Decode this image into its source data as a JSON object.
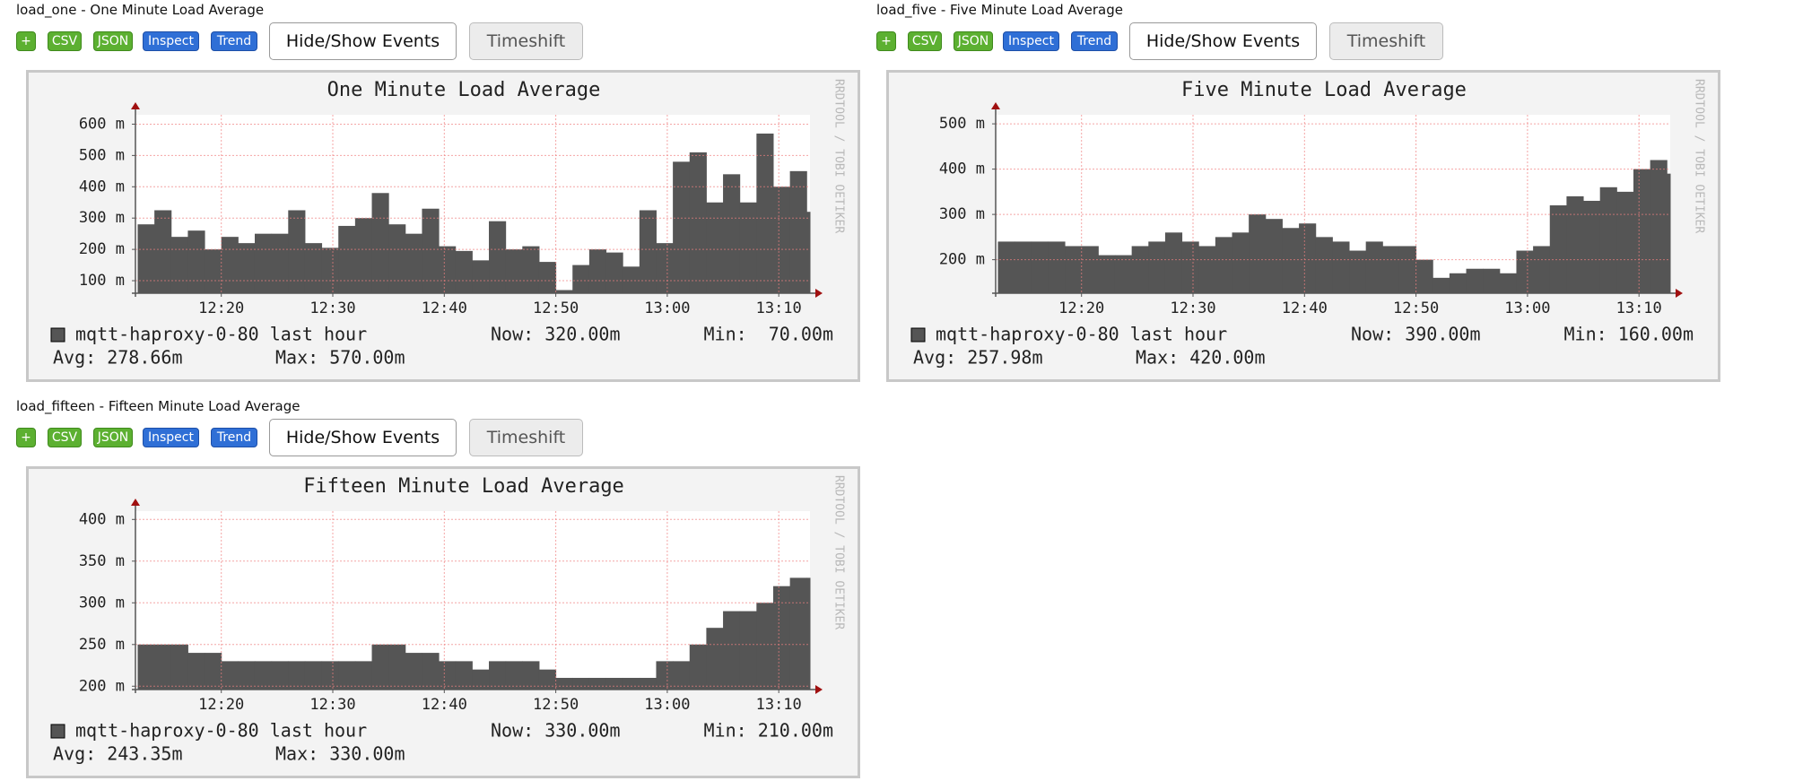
{
  "panels": [
    {
      "heading": "load_one - One Minute Load Average",
      "buttons": [
        "+",
        "CSV",
        "JSON",
        "Inspect",
        "Trend",
        "Hide/Show Events",
        "Timeshift"
      ]
    },
    {
      "heading": "load_five - Five Minute Load Average",
      "buttons": [
        "+",
        "CSV",
        "JSON",
        "Inspect",
        "Trend",
        "Hide/Show Events",
        "Timeshift"
      ]
    },
    {
      "heading": "load_fifteen - Fifteen Minute Load Average",
      "buttons": [
        "+",
        "CSV",
        "JSON",
        "Inspect",
        "Trend",
        "Hide/Show Events",
        "Timeshift"
      ]
    }
  ],
  "chart_data": [
    {
      "type": "area",
      "title": "One Minute Load Average",
      "watermark": "RRDTOOL / TOBI OETIKER",
      "x": [
        732.5,
        734,
        735.5,
        737,
        738.5,
        740,
        741.5,
        743,
        744.5,
        746,
        747.5,
        749,
        750.5,
        752,
        753.5,
        755,
        756.5,
        758,
        759.5,
        761,
        762.5,
        764,
        765.5,
        767,
        768.5,
        770,
        771.5,
        773,
        774.5,
        776,
        777.5,
        779,
        780.5,
        782,
        783.5,
        785,
        786.5,
        788,
        789.5,
        791,
        792.5
      ],
      "xlim": [
        732.3,
        792.8
      ],
      "xticks": [
        {
          "value": 740,
          "label": "12:20"
        },
        {
          "value": 750,
          "label": "12:30"
        },
        {
          "value": 760,
          "label": "12:40"
        },
        {
          "value": 770,
          "label": "12:50"
        },
        {
          "value": 780,
          "label": "13:00"
        },
        {
          "value": 790,
          "label": "13:10"
        }
      ],
      "series": [
        {
          "name": "mqtt-haproxy-0-80 last hour",
          "color": "#555555",
          "values": [
            280,
            325,
            240,
            260,
            200,
            240,
            220,
            250,
            250,
            325,
            220,
            205,
            275,
            300,
            380,
            280,
            250,
            330,
            210,
            195,
            165,
            290,
            200,
            210,
            160,
            70,
            150,
            200,
            190,
            145,
            325,
            220,
            480,
            510,
            350,
            440,
            350,
            570,
            400,
            450,
            320
          ]
        }
      ],
      "ylim": [
        60,
        630
      ],
      "yticks": [
        {
          "value": 100,
          "label": "100 m"
        },
        {
          "value": 200,
          "label": "200 m"
        },
        {
          "value": 300,
          "label": "300 m"
        },
        {
          "value": 400,
          "label": "400 m"
        },
        {
          "value": 500,
          "label": "500 m"
        },
        {
          "value": 600,
          "label": "600 m"
        }
      ],
      "grid": true,
      "stats": [
        "Now: 320.00m",
        "Min:  70.00m",
        "Avg: 278.66m",
        "Max: 570.00m"
      ]
    },
    {
      "type": "area",
      "title": "Five Minute Load Average",
      "watermark": "RRDTOOL / TOBI OETIKER",
      "x": [
        732.5,
        734,
        735.5,
        737,
        738.5,
        740,
        741.5,
        743,
        744.5,
        746,
        747.5,
        749,
        750.5,
        752,
        753.5,
        755,
        756.5,
        758,
        759.5,
        761,
        762.5,
        764,
        765.5,
        767,
        768.5,
        770,
        771.5,
        773,
        774.5,
        776,
        777.5,
        779,
        780.5,
        782,
        783.5,
        785,
        786.5,
        788,
        789.5,
        791,
        792.5
      ],
      "xlim": [
        732.3,
        792.8
      ],
      "xticks": [
        {
          "value": 740,
          "label": "12:20"
        },
        {
          "value": 750,
          "label": "12:30"
        },
        {
          "value": 760,
          "label": "12:40"
        },
        {
          "value": 770,
          "label": "12:50"
        },
        {
          "value": 780,
          "label": "13:00"
        },
        {
          "value": 790,
          "label": "13:10"
        }
      ],
      "series": [
        {
          "name": "mqtt-haproxy-0-80 last hour",
          "color": "#555555",
          "values": [
            240,
            240,
            240,
            240,
            230,
            230,
            210,
            210,
            230,
            240,
            260,
            240,
            230,
            250,
            260,
            300,
            290,
            270,
            280,
            250,
            240,
            220,
            240,
            230,
            230,
            200,
            160,
            170,
            180,
            180,
            170,
            220,
            230,
            320,
            340,
            330,
            360,
            350,
            400,
            420,
            390
          ]
        }
      ],
      "ylim": [
        126,
        520
      ],
      "yticks": [
        {
          "value": 200,
          "label": "200 m"
        },
        {
          "value": 300,
          "label": "300 m"
        },
        {
          "value": 400,
          "label": "400 m"
        },
        {
          "value": 500,
          "label": "500 m"
        }
      ],
      "grid": true,
      "stats": [
        "Now: 390.00m",
        "Min: 160.00m",
        "Avg: 257.98m",
        "Max: 420.00m"
      ]
    },
    {
      "type": "area",
      "title": "Fifteen Minute Load Average",
      "watermark": "RRDTOOL / TOBI OETIKER",
      "x": [
        732.5,
        734,
        735.5,
        737,
        738.5,
        740,
        741.5,
        743,
        744.5,
        746,
        747.5,
        749,
        750.5,
        752,
        753.5,
        755,
        756.5,
        758,
        759.5,
        761,
        762.5,
        764,
        765.5,
        767,
        768.5,
        770,
        771.5,
        773,
        774.5,
        776,
        777.5,
        779,
        780.5,
        782,
        783.5,
        785,
        786.5,
        788,
        789.5,
        791,
        792.5
      ],
      "xlim": [
        732.3,
        792.8
      ],
      "xticks": [
        {
          "value": 740,
          "label": "12:20"
        },
        {
          "value": 750,
          "label": "12:30"
        },
        {
          "value": 760,
          "label": "12:40"
        },
        {
          "value": 770,
          "label": "12:50"
        },
        {
          "value": 780,
          "label": "13:00"
        },
        {
          "value": 790,
          "label": "13:10"
        }
      ],
      "series": [
        {
          "name": "mqtt-haproxy-0-80 last hour",
          "color": "#555555",
          "values": [
            250,
            250,
            250,
            240,
            240,
            230,
            230,
            230,
            230,
            230,
            230,
            230,
            230,
            230,
            250,
            250,
            240,
            240,
            230,
            230,
            220,
            230,
            230,
            230,
            220,
            210,
            210,
            210,
            210,
            210,
            210,
            230,
            230,
            250,
            270,
            290,
            290,
            300,
            320,
            330,
            330
          ]
        }
      ],
      "ylim": [
        196,
        410
      ],
      "yticks": [
        {
          "value": 200,
          "label": "200 m"
        },
        {
          "value": 250,
          "label": "250 m"
        },
        {
          "value": 300,
          "label": "300 m"
        },
        {
          "value": 350,
          "label": "350 m"
        },
        {
          "value": 400,
          "label": "400 m"
        }
      ],
      "grid": true,
      "stats": [
        "Now: 330.00m",
        "Min: 210.00m",
        "Avg: 243.35m",
        "Max: 330.00m"
      ]
    }
  ]
}
